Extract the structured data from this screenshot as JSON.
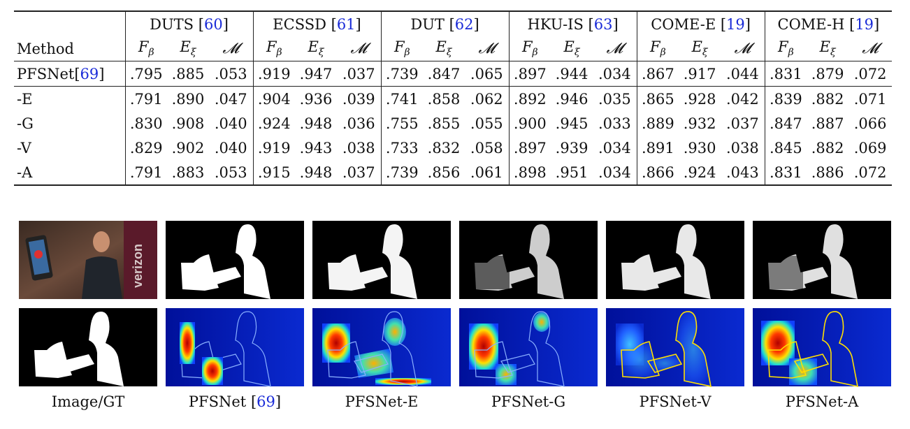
{
  "table": {
    "header_method": "Method",
    "datasets": [
      {
        "name": "DUTS",
        "ref": "60"
      },
      {
        "name": "ECSSD",
        "ref": "61"
      },
      {
        "name": "DUT",
        "ref": "62"
      },
      {
        "name": "HKU-IS",
        "ref": "63"
      },
      {
        "name": "COME-E",
        "ref": "19"
      },
      {
        "name": "COME-H",
        "ref": "19"
      }
    ],
    "metrics": {
      "f": "F",
      "f_sub": "β",
      "e": "E",
      "e_sub": "ξ",
      "m": "𝓜"
    },
    "baseline": {
      "method": "PFSNet",
      "ref": "69",
      "values": [
        ".795",
        ".885",
        ".053",
        ".919",
        ".947",
        ".037",
        ".739",
        ".847",
        ".065",
        ".897",
        ".944",
        ".034",
        ".867",
        ".917",
        ".044",
        ".831",
        ".879",
        ".072"
      ]
    },
    "ablations": [
      {
        "method": "-E",
        "values": [
          ".791",
          ".890",
          ".047",
          ".904",
          ".936",
          ".039",
          ".741",
          ".858",
          ".062",
          ".892",
          ".946",
          ".035",
          ".865",
          ".928",
          ".042",
          ".839",
          ".882",
          ".071"
        ]
      },
      {
        "method": "-G",
        "values": [
          ".830",
          ".908",
          ".040",
          ".924",
          ".948",
          ".036",
          ".755",
          ".855",
          ".055",
          ".900",
          ".945",
          ".033",
          ".889",
          ".932",
          ".037",
          ".847",
          ".887",
          ".066"
        ]
      },
      {
        "method": "-V",
        "values": [
          ".829",
          ".902",
          ".040",
          ".919",
          ".943",
          ".038",
          ".733",
          ".832",
          ".058",
          ".897",
          ".939",
          ".034",
          ".891",
          ".930",
          ".038",
          ".845",
          ".882",
          ".069"
        ]
      },
      {
        "method": "-A",
        "values": [
          ".791",
          ".883",
          ".053",
          ".915",
          ".948",
          ".037",
          ".739",
          ".856",
          ".061",
          ".898",
          ".951",
          ".034",
          ".866",
          ".924",
          ".043",
          ".831",
          ".886",
          ".072"
        ]
      }
    ]
  },
  "figure": {
    "photo_sign_text": "verizon",
    "captions": [
      {
        "text": "Image/GT",
        "ref": ""
      },
      {
        "text": "PFSNet ",
        "ref": "69"
      },
      {
        "text": "PFSNet-E",
        "ref": ""
      },
      {
        "text": "PFSNet-G",
        "ref": ""
      },
      {
        "text": "PFSNet-V",
        "ref": ""
      },
      {
        "text": "PFSNet-A",
        "ref": ""
      }
    ]
  }
}
